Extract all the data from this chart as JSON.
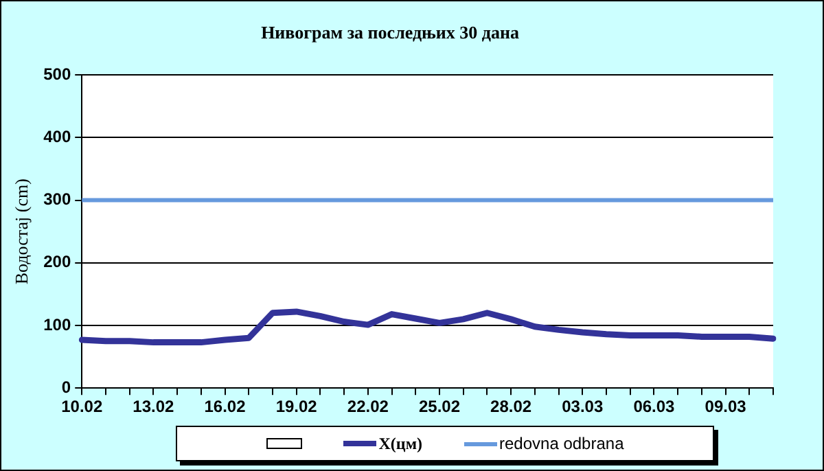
{
  "chart_data": {
    "type": "line",
    "title": "Нивограм за последњих 30 дана",
    "ylabel": "Водостај (cm)",
    "categories": [
      "10.02",
      null,
      null,
      "13.02",
      null,
      null,
      "16.02",
      null,
      null,
      "19.02",
      null,
      null,
      "22.02",
      null,
      null,
      "25.02",
      null,
      null,
      "28.02",
      null,
      null,
      "03.03",
      null,
      null,
      "06.03",
      null,
      null,
      "09.03",
      null,
      null
    ],
    "series": [
      {
        "name": "X(цм)",
        "color": "#333399",
        "values": [
          77,
          75,
          75,
          73,
          73,
          73,
          77,
          80,
          120,
          122,
          115,
          106,
          101,
          118,
          111,
          104,
          110,
          120,
          110,
          98,
          93,
          89,
          86,
          84,
          84,
          84,
          82,
          82,
          82,
          79
        ]
      }
    ],
    "ref_lines": [
      {
        "axis": "y",
        "value": 300,
        "label": "redovna odbrana",
        "color": "#6699dd"
      }
    ],
    "ylim": [
      0,
      500
    ],
    "yticks": [
      0,
      100,
      200,
      300,
      400,
      500
    ],
    "grid": "y",
    "legend": "bottom",
    "marker": "none",
    "line_style": "solid"
  }
}
